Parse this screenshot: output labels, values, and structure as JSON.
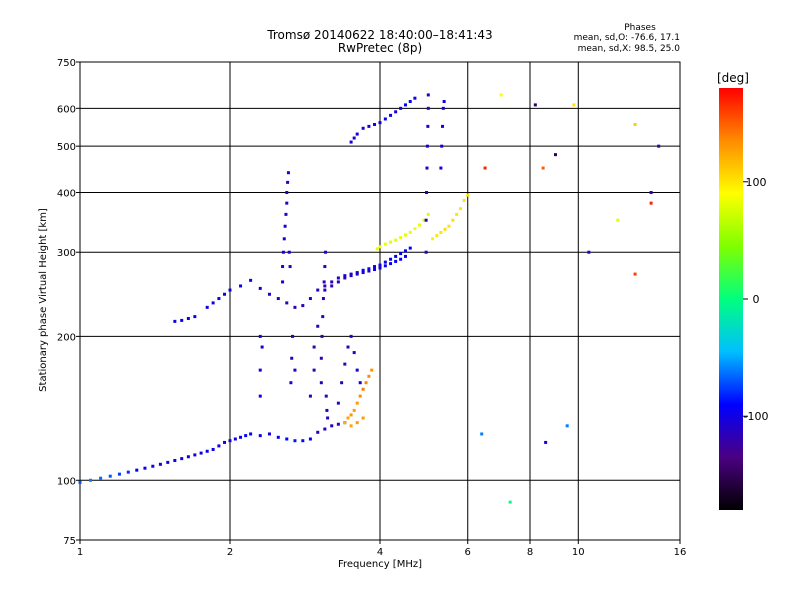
{
  "title_line1": "Tromsø 20140622 18:40:00–18:41:43",
  "title_line2": "RwPretec (8p)",
  "stats": {
    "heading": "Phases",
    "line1": "mean, sd,O: -76.6, 17.1",
    "line2": "mean, sd,X:  98.5, 25.0"
  },
  "colorbar": {
    "label": "[deg]",
    "ticks": [
      {
        "value": 100,
        "label": "100"
      },
      {
        "value": 0,
        "label": "0"
      },
      {
        "value": -100,
        "label": "-100"
      }
    ],
    "range": [
      -180,
      180
    ],
    "colors": [
      "#000000",
      "#4b0082",
      "#0000ff",
      "#00bfff",
      "#00ff7f",
      "#7fff00",
      "#ffff00",
      "#ff8c00",
      "#ff0000"
    ]
  },
  "chart_data": {
    "type": "scatter",
    "xlabel": "Frequency [MHz]",
    "ylabel": "Stationary phase Virtual Height [km]",
    "x_scale": "log",
    "y_scale": "log",
    "xlim": [
      1,
      16
    ],
    "ylim": [
      75,
      750
    ],
    "x_ticks": [
      1,
      2,
      4,
      6,
      8,
      10,
      16
    ],
    "x_tick_labels": [
      "1",
      "2",
      "4",
      "6",
      "8",
      "10",
      "16"
    ],
    "y_ticks": [
      75,
      100,
      200,
      300,
      400,
      500,
      600,
      750
    ],
    "y_tick_labels": [
      "75",
      "100",
      "200",
      "300",
      "400",
      "500",
      "600",
      "750"
    ],
    "grid": true,
    "series": [
      {
        "points": [
          [
            1.0,
            99,
            -70
          ],
          [
            1.05,
            100,
            -60
          ],
          [
            1.1,
            101,
            -65
          ],
          [
            1.15,
            102,
            -70
          ],
          [
            1.2,
            103,
            -75
          ],
          [
            1.25,
            104,
            -80
          ],
          [
            1.3,
            105,
            -90
          ],
          [
            1.35,
            106,
            -95
          ],
          [
            1.4,
            107,
            -100
          ],
          [
            1.45,
            108,
            -105
          ],
          [
            1.5,
            109,
            -100
          ],
          [
            1.55,
            110,
            -98
          ],
          [
            1.6,
            111,
            -95
          ],
          [
            1.65,
            112,
            -100
          ],
          [
            1.7,
            113,
            -105
          ],
          [
            1.75,
            114,
            -100
          ],
          [
            1.8,
            115,
            -98
          ],
          [
            1.85,
            116,
            -95
          ],
          [
            1.9,
            118,
            -100
          ],
          [
            1.95,
            120,
            -102
          ],
          [
            2.0,
            121,
            -100
          ],
          [
            2.05,
            122,
            -98
          ],
          [
            2.1,
            123,
            -95
          ],
          [
            2.15,
            124,
            -92
          ],
          [
            2.2,
            125,
            -90
          ],
          [
            2.3,
            124,
            -95
          ],
          [
            2.4,
            125,
            -100
          ],
          [
            2.5,
            123,
            -92
          ],
          [
            2.6,
            122,
            -90
          ],
          [
            2.7,
            121,
            -85
          ],
          [
            2.8,
            121,
            -88
          ],
          [
            2.9,
            122,
            -90
          ],
          [
            3.0,
            126,
            -110
          ],
          [
            3.1,
            128,
            -112
          ],
          [
            3.2,
            130,
            -110
          ],
          [
            3.3,
            131,
            -115
          ],
          [
            3.4,
            132,
            -118
          ]
        ]
      },
      {
        "points": [
          [
            1.55,
            215,
            -100
          ],
          [
            1.6,
            216,
            -95
          ],
          [
            1.65,
            218,
            -98
          ],
          [
            1.7,
            220,
            -95
          ],
          [
            1.8,
            230,
            -100
          ],
          [
            1.85,
            235,
            -98
          ],
          [
            1.9,
            240,
            -100
          ],
          [
            1.95,
            245,
            -100
          ],
          [
            2.0,
            250,
            -98
          ],
          [
            2.1,
            255,
            -100
          ],
          [
            2.2,
            262,
            -102
          ],
          [
            2.3,
            252,
            -105
          ],
          [
            2.4,
            245,
            -110
          ],
          [
            2.5,
            240,
            -112
          ],
          [
            2.6,
            235,
            -115
          ],
          [
            2.7,
            230,
            -118
          ],
          [
            2.8,
            232,
            -115
          ],
          [
            2.9,
            240,
            -112
          ],
          [
            3.0,
            250,
            -115
          ],
          [
            3.1,
            255,
            -118
          ],
          [
            3.2,
            260,
            -115
          ],
          [
            3.3,
            265,
            -110
          ],
          [
            3.4,
            268,
            -108
          ],
          [
            3.5,
            270,
            -100
          ],
          [
            3.6,
            272,
            -98
          ],
          [
            3.7,
            275,
            -95
          ],
          [
            3.8,
            277,
            -100
          ],
          [
            3.9,
            280,
            -102
          ],
          [
            4.0,
            282,
            -100
          ],
          [
            4.1,
            286,
            -98
          ],
          [
            4.2,
            290,
            -95
          ],
          [
            4.3,
            294,
            -90
          ],
          [
            4.4,
            298,
            -92
          ],
          [
            4.5,
            302,
            -95
          ],
          [
            4.6,
            306,
            -90
          ]
        ]
      },
      {
        "points": [
          [
            3.1,
            250,
            -115
          ],
          [
            3.2,
            255,
            -120
          ],
          [
            3.3,
            260,
            -118
          ],
          [
            3.4,
            265,
            -115
          ],
          [
            3.5,
            268,
            -112
          ],
          [
            3.6,
            270,
            -110
          ],
          [
            3.7,
            272,
            -108
          ],
          [
            3.8,
            274,
            -105
          ],
          [
            3.9,
            276,
            -100
          ],
          [
            4.0,
            278,
            -98
          ],
          [
            4.1,
            281,
            -95
          ],
          [
            4.2,
            284,
            -92
          ],
          [
            4.3,
            287,
            -90
          ],
          [
            4.4,
            290,
            -95
          ],
          [
            4.5,
            294,
            -98
          ]
        ]
      },
      {
        "points": [
          [
            2.55,
            260,
            -100
          ],
          [
            2.55,
            280,
            -105
          ],
          [
            2.56,
            300,
            -110
          ],
          [
            2.57,
            320,
            -100
          ],
          [
            2.58,
            340,
            -105
          ],
          [
            2.59,
            360,
            -110
          ],
          [
            2.6,
            380,
            -108
          ],
          [
            2.6,
            400,
            -112
          ],
          [
            2.61,
            420,
            -110
          ],
          [
            2.62,
            440,
            -105
          ],
          [
            2.63,
            300,
            -108
          ],
          [
            2.64,
            280,
            -110
          ]
        ]
      },
      {
        "points": [
          [
            3.05,
            160,
            -115
          ],
          [
            3.05,
            180,
            -120
          ],
          [
            3.06,
            200,
            -118
          ],
          [
            3.07,
            220,
            -115
          ],
          [
            3.08,
            240,
            -120
          ],
          [
            3.09,
            260,
            -118
          ],
          [
            3.1,
            280,
            -115
          ],
          [
            3.11,
            300,
            -110
          ],
          [
            3.12,
            150,
            -120
          ],
          [
            3.13,
            140,
            -118
          ],
          [
            3.14,
            135,
            -115
          ]
        ]
      },
      {
        "points": [
          [
            2.3,
            150,
            -100
          ],
          [
            2.3,
            170,
            -105
          ],
          [
            2.32,
            190,
            -102
          ],
          [
            2.3,
            200,
            -100
          ],
          [
            2.65,
            160,
            -110
          ],
          [
            2.66,
            180,
            -115
          ],
          [
            2.67,
            200,
            -112
          ],
          [
            2.7,
            170,
            -110
          ],
          [
            2.9,
            150,
            -115
          ],
          [
            2.95,
            170,
            -118
          ],
          [
            2.95,
            190,
            -120
          ],
          [
            3.0,
            210,
            -115
          ]
        ]
      },
      {
        "points": [
          [
            3.3,
            145,
            -115
          ],
          [
            3.35,
            160,
            -118
          ],
          [
            3.4,
            175,
            -120
          ],
          [
            3.45,
            190,
            -116
          ],
          [
            3.5,
            200,
            -112
          ],
          [
            3.55,
            185,
            -110
          ],
          [
            3.6,
            170,
            -108
          ],
          [
            3.65,
            160,
            -110
          ]
        ]
      },
      {
        "points": [
          [
            3.4,
            132,
            120
          ],
          [
            3.45,
            135,
            125
          ],
          [
            3.5,
            137,
            130
          ],
          [
            3.55,
            140,
            128
          ],
          [
            3.6,
            145,
            130
          ],
          [
            3.65,
            150,
            135
          ],
          [
            3.7,
            155,
            140
          ],
          [
            3.75,
            160,
            138
          ],
          [
            3.8,
            165,
            135
          ],
          [
            3.85,
            170,
            132
          ],
          [
            3.5,
            130,
            125
          ],
          [
            3.6,
            132,
            128
          ],
          [
            3.7,
            135,
            130
          ]
        ]
      },
      {
        "points": [
          [
            3.5,
            510,
            -100
          ],
          [
            3.55,
            520,
            -105
          ],
          [
            3.6,
            530,
            -100
          ],
          [
            3.7,
            545,
            -102
          ],
          [
            3.8,
            550,
            -100
          ],
          [
            3.9,
            555,
            -98
          ],
          [
            4.0,
            560,
            -100
          ],
          [
            4.1,
            570,
            -95
          ],
          [
            4.2,
            580,
            -98
          ],
          [
            4.3,
            590,
            -100
          ],
          [
            4.4,
            600,
            -95
          ],
          [
            4.5,
            610,
            -92
          ],
          [
            4.6,
            620,
            -95
          ],
          [
            4.7,
            630,
            -100
          ]
        ]
      },
      {
        "points": [
          [
            3.95,
            305,
            80
          ],
          [
            4.0,
            308,
            85
          ],
          [
            4.1,
            312,
            82
          ],
          [
            4.2,
            315,
            80
          ],
          [
            4.3,
            318,
            78
          ],
          [
            4.4,
            322,
            82
          ],
          [
            4.5,
            326,
            80
          ],
          [
            4.6,
            330,
            82
          ],
          [
            4.7,
            336,
            85
          ],
          [
            4.8,
            342,
            82
          ],
          [
            4.9,
            350,
            80
          ],
          [
            5.0,
            360,
            78
          ]
        ]
      },
      {
        "points": [
          [
            5.1,
            320,
            95
          ],
          [
            5.2,
            325,
            98
          ],
          [
            5.3,
            330,
            100
          ],
          [
            5.4,
            335,
            102
          ],
          [
            5.5,
            340,
            100
          ],
          [
            5.6,
            350,
            102
          ],
          [
            5.7,
            360,
            100
          ],
          [
            5.8,
            370,
            98
          ],
          [
            5.9,
            385,
            100
          ],
          [
            6.0,
            395,
            102
          ]
        ]
      },
      {
        "points": [
          [
            4.95,
            300,
            -110
          ],
          [
            4.95,
            350,
            -115
          ],
          [
            4.96,
            400,
            -112
          ],
          [
            4.97,
            450,
            -110
          ],
          [
            4.98,
            500,
            -108
          ],
          [
            4.99,
            550,
            -112
          ],
          [
            5.0,
            600,
            -110
          ],
          [
            5.0,
            640,
            -108
          ],
          [
            5.3,
            450,
            -100
          ],
          [
            5.32,
            500,
            -105
          ],
          [
            5.34,
            550,
            -102
          ],
          [
            5.36,
            600,
            -100
          ],
          [
            5.38,
            620,
            -98
          ]
        ]
      },
      {
        "points": [
          [
            6.5,
            450,
            170
          ],
          [
            7.0,
            640,
            90
          ],
          [
            8.2,
            610,
            -150
          ],
          [
            8.5,
            450,
            150
          ],
          [
            9.0,
            480,
            -150
          ],
          [
            9.8,
            610,
            100
          ],
          [
            12.0,
            350,
            80
          ],
          [
            13.0,
            555,
            110
          ],
          [
            14.0,
            380,
            170
          ],
          [
            14.5,
            500,
            -120
          ],
          [
            6.4,
            125,
            -60
          ],
          [
            7.3,
            90,
            0
          ],
          [
            8.6,
            120,
            -100
          ],
          [
            9.5,
            130,
            -60
          ],
          [
            10.5,
            300,
            -110
          ],
          [
            13.0,
            270,
            160
          ],
          [
            14.0,
            400,
            -120
          ]
        ]
      }
    ]
  }
}
